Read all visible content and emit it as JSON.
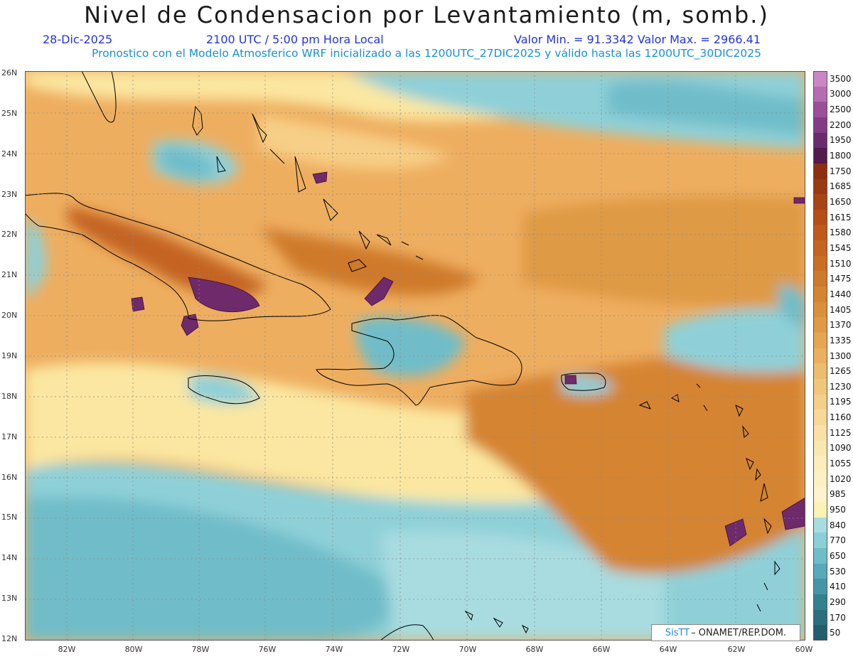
{
  "title": "Nivel de Condensacion por Levantamiento (m, somb.)",
  "date": "28-Dic-2025",
  "time": "2100 UTC / 5:00 pm Hora Local",
  "minmax": "Valor Min. = 91.3342   Valor Max. = 2966.41",
  "description": "Pronostico con el Modelo Atmosferico WRF inicializado a las 1200UTC_27DIC2025 y válido hasta las  1200UTC_30DIC2025",
  "lat_labels": [
    "26N",
    "25N",
    "24N",
    "23N",
    "22N",
    "21N",
    "20N",
    "19N",
    "18N",
    "17N",
    "16N",
    "15N",
    "14N",
    "13N",
    "12N"
  ],
  "lon_labels": [
    "82W",
    "80W",
    "78W",
    "76W",
    "74W",
    "72W",
    "70W",
    "68W",
    "66W",
    "64W",
    "62W",
    "60W"
  ],
  "colorbar": {
    "levels": [
      "3500",
      "3000",
      "2500",
      "2200",
      "1950",
      "1800",
      "1750",
      "1685",
      "1650",
      "1615",
      "1580",
      "1545",
      "1510",
      "1475",
      "1440",
      "1405",
      "1370",
      "1335",
      "1300",
      "1265",
      "1230",
      "1195",
      "1160",
      "1125",
      "1090",
      "1055",
      "1020",
      "985",
      "950",
      "840",
      "770",
      "650",
      "530",
      "410",
      "290",
      "170",
      "50"
    ],
    "colors": [
      "#c987c4",
      "#b36db2",
      "#9a4f98",
      "#823c85",
      "#6a2a6e",
      "#521a4d",
      "#8b2f10",
      "#9a3a12",
      "#a84515",
      "#b44f18",
      "#bd5a1c",
      "#c46420",
      "#ca6e25",
      "#cf792b",
      "#d58432",
      "#da8f3b",
      "#df9a45",
      "#e4a652",
      "#e9b15f",
      "#edbc6d",
      "#f1c67b",
      "#f4cf8a",
      "#f6d898",
      "#f8e0a6",
      "#f9e7b2",
      "#fbedbd",
      "#fcf1c6",
      "#fdf4cf",
      "#fbf2b6",
      "#a8dce0",
      "#8ccfd6",
      "#6fbdc9",
      "#58a9bb",
      "#4694aa",
      "#35808f",
      "#2b6f7e",
      "#245e6c"
    ]
  },
  "credit": {
    "brand": "SisTT",
    "text": " – ONAMET/REP.DOM."
  },
  "map_colors": {
    "ocean_warm": "#eeaa55",
    "cool": "#8fd0d8",
    "yellow": "#fbe7a1",
    "purple": "#6e2a6a"
  }
}
